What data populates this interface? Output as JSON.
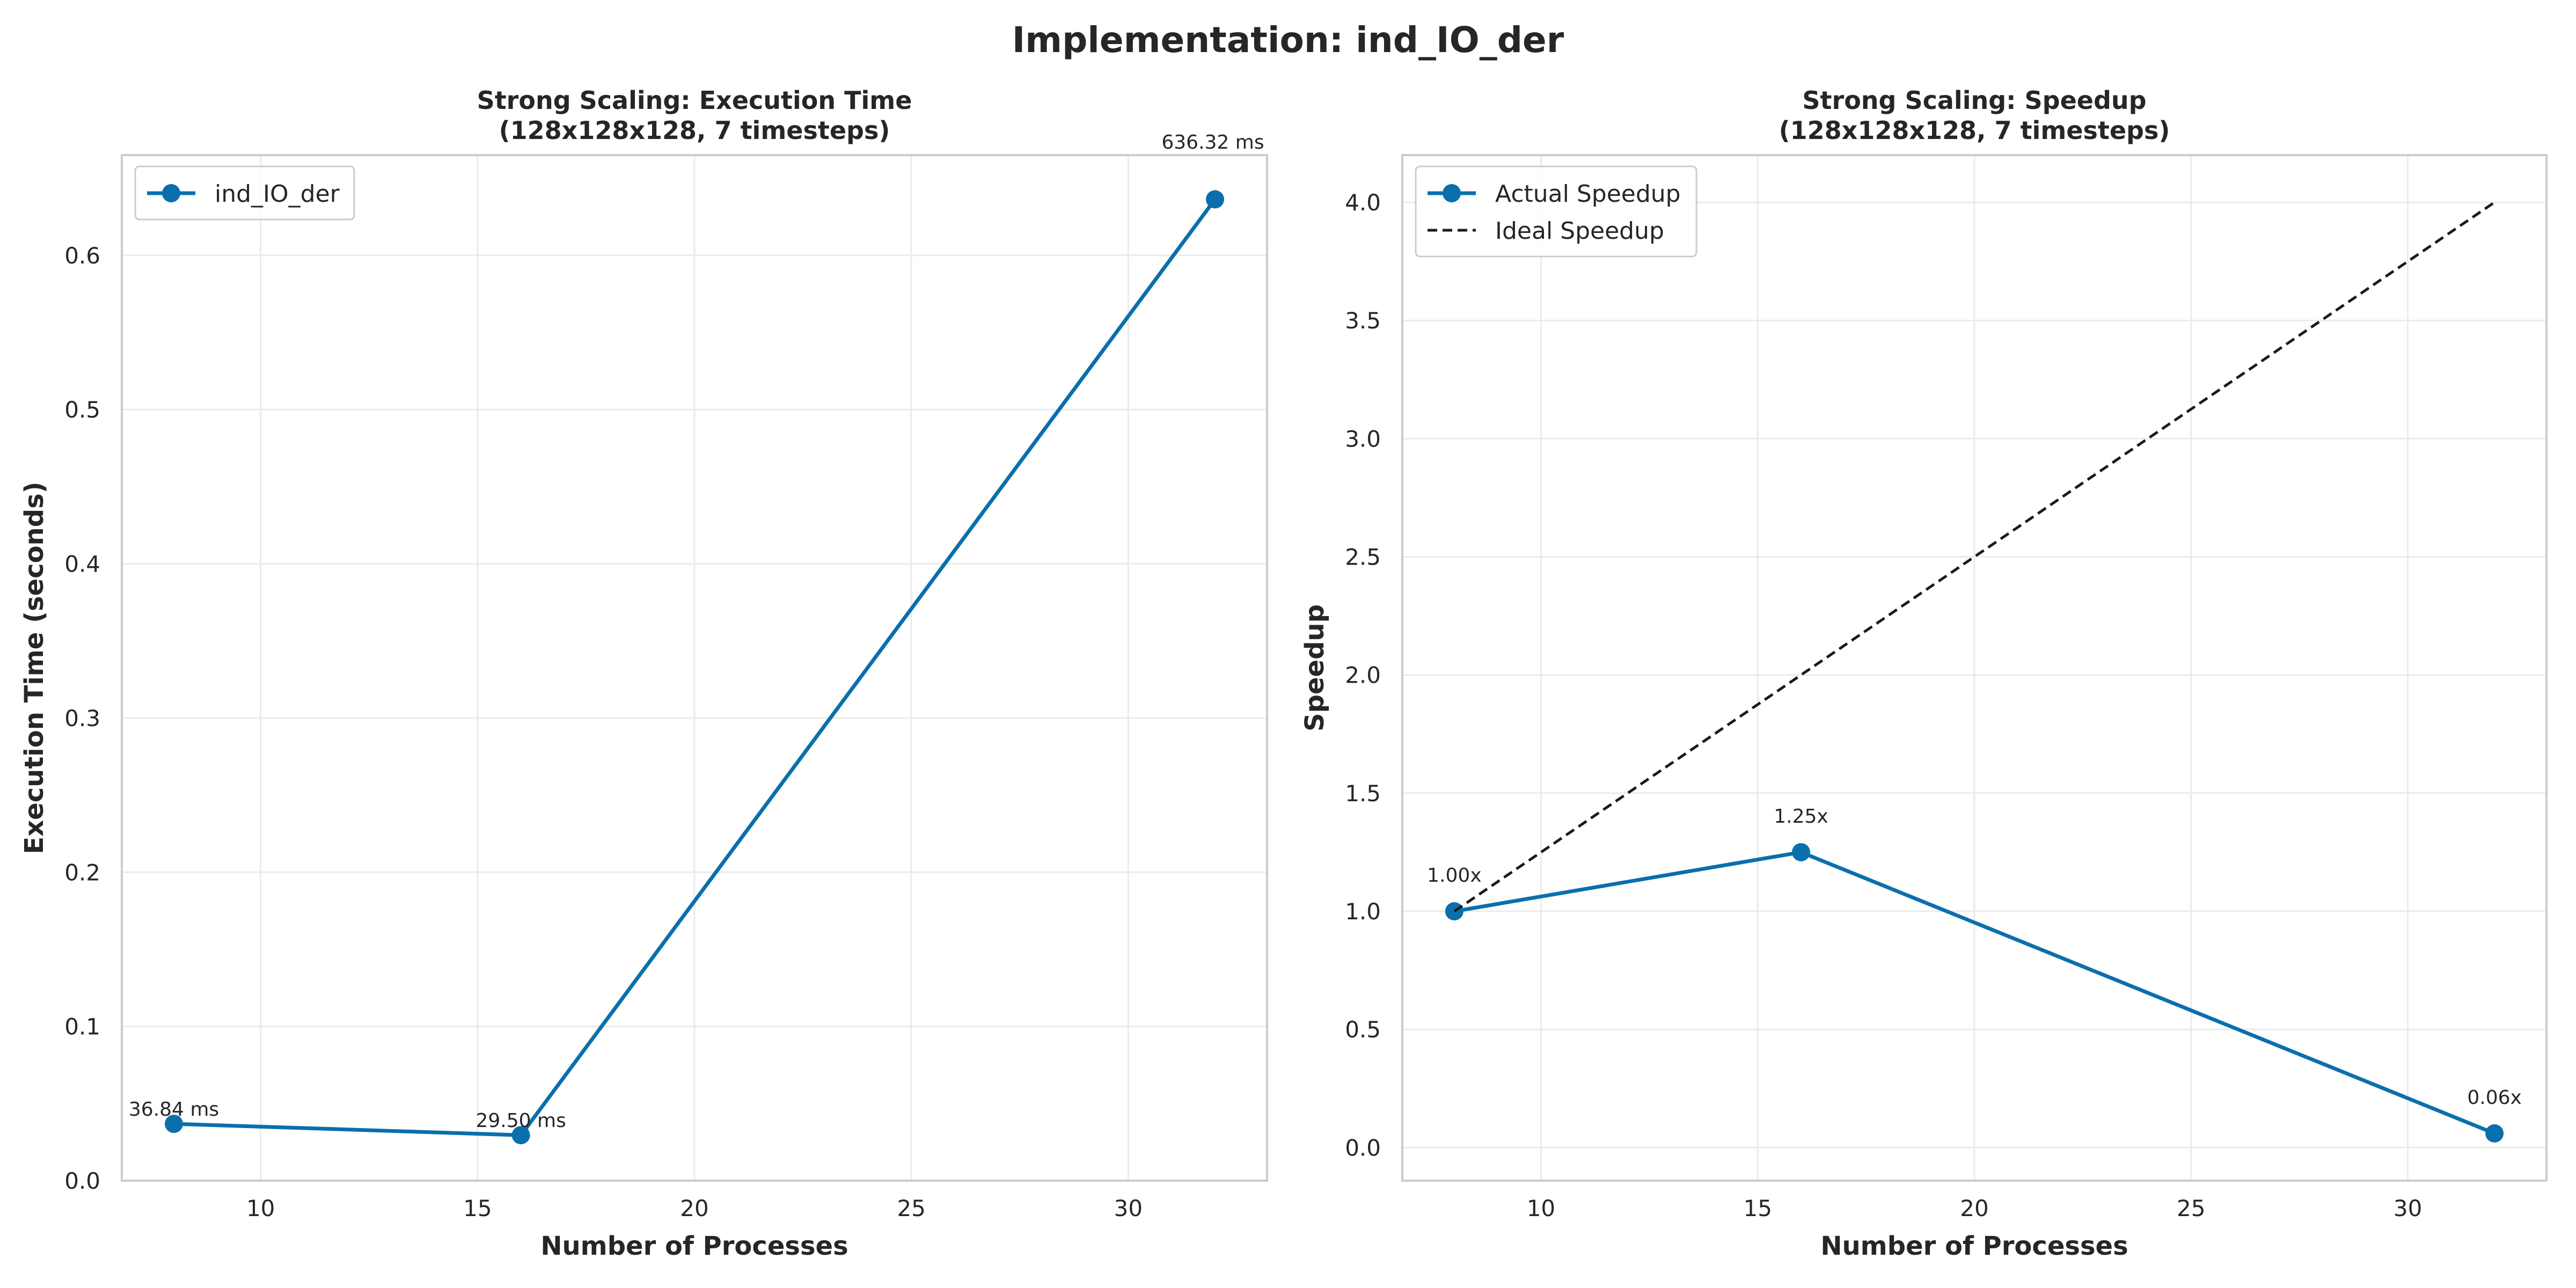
{
  "figure": {
    "suptitle": "Implementation: ind_IO_der"
  },
  "chart_data": [
    {
      "type": "line",
      "title_line1": "Strong Scaling: Execution Time",
      "title_line2": "(128x128x128, 7 timesteps)",
      "xlabel": "Number of Processes",
      "ylabel": "Execution Time (seconds)",
      "xlim": [
        6.8,
        33.2
      ],
      "ylim": [
        0.0,
        0.665
      ],
      "xticks": [
        10,
        15,
        20,
        25,
        30
      ],
      "xtick_labels": [
        "10",
        "15",
        "20",
        "25",
        "30"
      ],
      "yticks": [
        0.0,
        0.1,
        0.2,
        0.3,
        0.4,
        0.5,
        0.6
      ],
      "ytick_labels": [
        "0.0",
        "0.1",
        "0.2",
        "0.3",
        "0.4",
        "0.5",
        "0.6"
      ],
      "grid": true,
      "legend_position": "top-left",
      "series": [
        {
          "name": "ind_IO_der",
          "style": "solid-marker",
          "color": "#0a6fad",
          "x": [
            8,
            16,
            32
          ],
          "y": [
            0.03684,
            0.0295,
            0.63632
          ],
          "labels": [
            "36.84 ms",
            "29.50 ms",
            "636.32 ms"
          ]
        }
      ]
    },
    {
      "type": "line",
      "title_line1": "Strong Scaling: Speedup",
      "title_line2": "(128x128x128, 7 timesteps)",
      "xlabel": "Number of Processes",
      "ylabel": "Speedup",
      "xlim": [
        6.8,
        33.2
      ],
      "ylim": [
        -0.14,
        4.2
      ],
      "xticks": [
        10,
        15,
        20,
        25,
        30
      ],
      "xtick_labels": [
        "10",
        "15",
        "20",
        "25",
        "30"
      ],
      "yticks": [
        0.0,
        0.5,
        1.0,
        1.5,
        2.0,
        2.5,
        3.0,
        3.5,
        4.0
      ],
      "ytick_labels": [
        "0.0",
        "0.5",
        "1.0",
        "1.5",
        "2.0",
        "2.5",
        "3.0",
        "3.5",
        "4.0"
      ],
      "grid": true,
      "legend_position": "top-left",
      "series": [
        {
          "name": "Actual Speedup",
          "style": "solid-marker",
          "color": "#0a6fad",
          "x": [
            8,
            16,
            32
          ],
          "y": [
            1.0,
            1.25,
            0.06
          ],
          "labels": [
            "1.00x",
            "1.25x",
            "0.06x"
          ]
        },
        {
          "name": "Ideal Speedup",
          "style": "dashed",
          "color": "#1a1a1a",
          "x": [
            8,
            16,
            32
          ],
          "y": [
            1.0,
            2.0,
            4.0
          ],
          "labels": []
        }
      ]
    }
  ]
}
